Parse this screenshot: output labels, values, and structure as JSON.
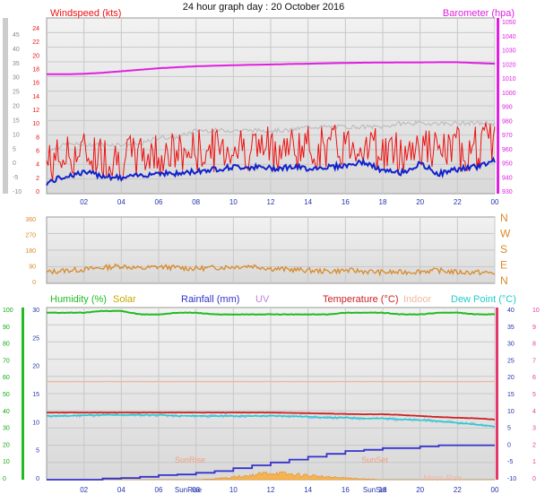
{
  "title": "24 hour graph day : 20 October 2016",
  "colors": {
    "wind": "#ee1111",
    "gust": "#bdbdbd",
    "windAvg": "#1122cc",
    "baro": "#e020e0",
    "dir": "#d98a2a",
    "humidity": "#22bb22",
    "solar": "#c8a800",
    "rain": "#3333cc",
    "uv": "#c080e0",
    "temp": "#cc2222",
    "indoor": "#f0b8a0",
    "dew": "#22cccc",
    "axisBlue": "#2233aa",
    "axisGreen": "#11aa11",
    "axisPink": "#e040a0"
  },
  "chart_data": [
    {
      "type": "line",
      "name": "wind-baro",
      "left_label": "Windspeed (kts)",
      "right_label": "Barometer (hpa)",
      "x_ticks": [
        "02",
        "04",
        "06",
        "08",
        "10",
        "12",
        "14",
        "16",
        "18",
        "20",
        "22",
        "00"
      ],
      "left_ticks": [
        "24",
        "22",
        "20",
        "18",
        "16",
        "14",
        "12",
        "10",
        "8",
        "6",
        "4",
        "2",
        "0"
      ],
      "far_left_ticks": [
        "45",
        "40",
        "35",
        "30",
        "25",
        "20",
        "15",
        "10",
        "5",
        "0",
        "-5",
        "-10"
      ],
      "right_ticks": [
        "1050",
        "1040",
        "1030",
        "1020",
        "1010",
        "1000",
        "990",
        "980",
        "970",
        "960",
        "950",
        "940",
        "930"
      ],
      "ylim_left": [
        0,
        25
      ],
      "ylim_right": [
        933,
        1050
      ],
      "series": {
        "barometer_hpa": [
          1012.5,
          1012.5,
          1012.8,
          1013.5,
          1014.5,
          1015.5,
          1016.5,
          1017.2,
          1017.8,
          1018.2,
          1018.5,
          1018.8,
          1019.0,
          1019.3,
          1019.5,
          1019.8,
          1020.0,
          1020.2,
          1020.3,
          1020.4,
          1020.4,
          1020.5,
          1020.5,
          1020.0,
          1019.5
        ],
        "windspeed_avg_kts": [
          1.5,
          2.5,
          3.0,
          2.6,
          2.2,
          2.6,
          3.0,
          2.8,
          3.2,
          3.5,
          3.8,
          3.8,
          3.6,
          3.8,
          3.6,
          3.8,
          4.0,
          4.5,
          3.2,
          3.0,
          4.2,
          2.8,
          3.5,
          3.8,
          4.8
        ],
        "gust_kts": [
          6,
          7,
          7,
          7,
          7,
          7,
          8,
          8,
          9,
          9,
          9,
          9,
          9,
          9,
          9.5,
          9.5,
          9.5,
          9.5,
          9.5,
          10,
          10,
          10,
          10,
          10,
          10
        ]
      }
    },
    {
      "type": "line",
      "name": "wind-direction",
      "left_ticks": [
        "360",
        "270",
        "180",
        "90",
        "0"
      ],
      "right_ticks": [
        "N",
        "W",
        "S",
        "E",
        "N"
      ],
      "ylim": [
        0,
        360
      ],
      "series": {
        "direction_deg": [
          60,
          70,
          75,
          85,
          95,
          80,
          90,
          85,
          80,
          85,
          90,
          95,
          80,
          75,
          70,
          65,
          70,
          65,
          60,
          60,
          65,
          70,
          60,
          60,
          55
        ]
      }
    },
    {
      "type": "line",
      "name": "humidity-temp",
      "labels": {
        "humidity": "Humidity (%)",
        "solar": "Solar",
        "rainfall": "Rainfall (mm)",
        "uv": "UV",
        "temperature": "Temperature (°C)",
        "indoor": "Indoor",
        "dew": "Dew Point (°C)"
      },
      "x_ticks": [
        "02",
        "04",
        "06",
        "08",
        "10",
        "12",
        "14",
        "16",
        "18",
        "20",
        "22",
        "00"
      ],
      "annotations": [
        "SunRise",
        "SunSet",
        "Moon Rise"
      ],
      "bottom_labels": [
        "SunRise",
        "SunSet"
      ],
      "humidity_ticks": [
        "100",
        "90",
        "80",
        "70",
        "60",
        "50",
        "40",
        "30",
        "20",
        "10",
        "0"
      ],
      "rain_ticks": [
        "30",
        "25",
        "20",
        "15",
        "10",
        "5",
        "0"
      ],
      "temp_ticks": [
        "40",
        "35",
        "30",
        "25",
        "20",
        "15",
        "10",
        "5",
        "0",
        "-5",
        "-10"
      ],
      "uv_ticks": [
        "10",
        "9",
        "8",
        "7",
        "6",
        "5",
        "4",
        "3",
        "2",
        "1",
        "0"
      ],
      "ylim_temp": [
        -10,
        40
      ],
      "ylim_humidity": [
        0,
        100
      ],
      "series": {
        "humidity_pct": [
          97,
          97,
          97,
          98,
          98,
          96,
          96,
          97,
          97,
          96,
          96,
          96,
          96,
          96,
          96,
          96,
          97,
          97,
          97,
          96,
          96,
          97,
          97,
          96,
          96
        ],
        "temperature_c": [
          9.5,
          9.5,
          9.5,
          9.5,
          9.5,
          9.5,
          9.5,
          9.5,
          9.5,
          9.5,
          9.5,
          9.5,
          9.5,
          9.4,
          9.3,
          9.2,
          9.1,
          9.0,
          9.0,
          8.8,
          8.5,
          8.2,
          8.0,
          7.8,
          7.5
        ],
        "indoor_c": [
          18.5,
          18.5,
          18.5,
          18.5,
          18.5,
          18.5,
          18.5,
          18.5,
          18.5,
          18.5,
          18.5,
          18.5,
          18.5,
          18.5,
          18.5,
          18.5,
          18.5,
          18.5,
          18.5,
          18.5,
          18.5,
          18.5,
          18.5,
          18.5,
          18.5
        ],
        "dewpoint_c": [
          8.5,
          8.5,
          8.7,
          8.8,
          8.8,
          8.8,
          8.8,
          8.5,
          8.5,
          8.5,
          8.5,
          8.5,
          8.5,
          8.5,
          8.3,
          8.0,
          8.0,
          7.8,
          7.8,
          7.5,
          7.3,
          7.0,
          6.5,
          6.0,
          5.5
        ],
        "rainfall_mm": [
          0,
          0,
          0,
          0.2,
          0.3,
          0.5,
          0.8,
          0.9,
          1.2,
          1.5,
          2.0,
          2.5,
          3.0,
          3.5,
          4.0,
          4.5,
          5.0,
          5.2,
          5.5,
          5.5,
          5.8,
          6.0,
          6.0,
          6.0,
          6.0
        ],
        "solar": [
          0,
          0,
          0,
          0,
          0,
          0,
          0,
          0,
          0,
          1,
          3,
          5,
          8,
          6,
          5,
          3,
          2,
          1,
          0,
          0,
          0,
          0,
          0,
          0,
          0
        ]
      }
    }
  ]
}
